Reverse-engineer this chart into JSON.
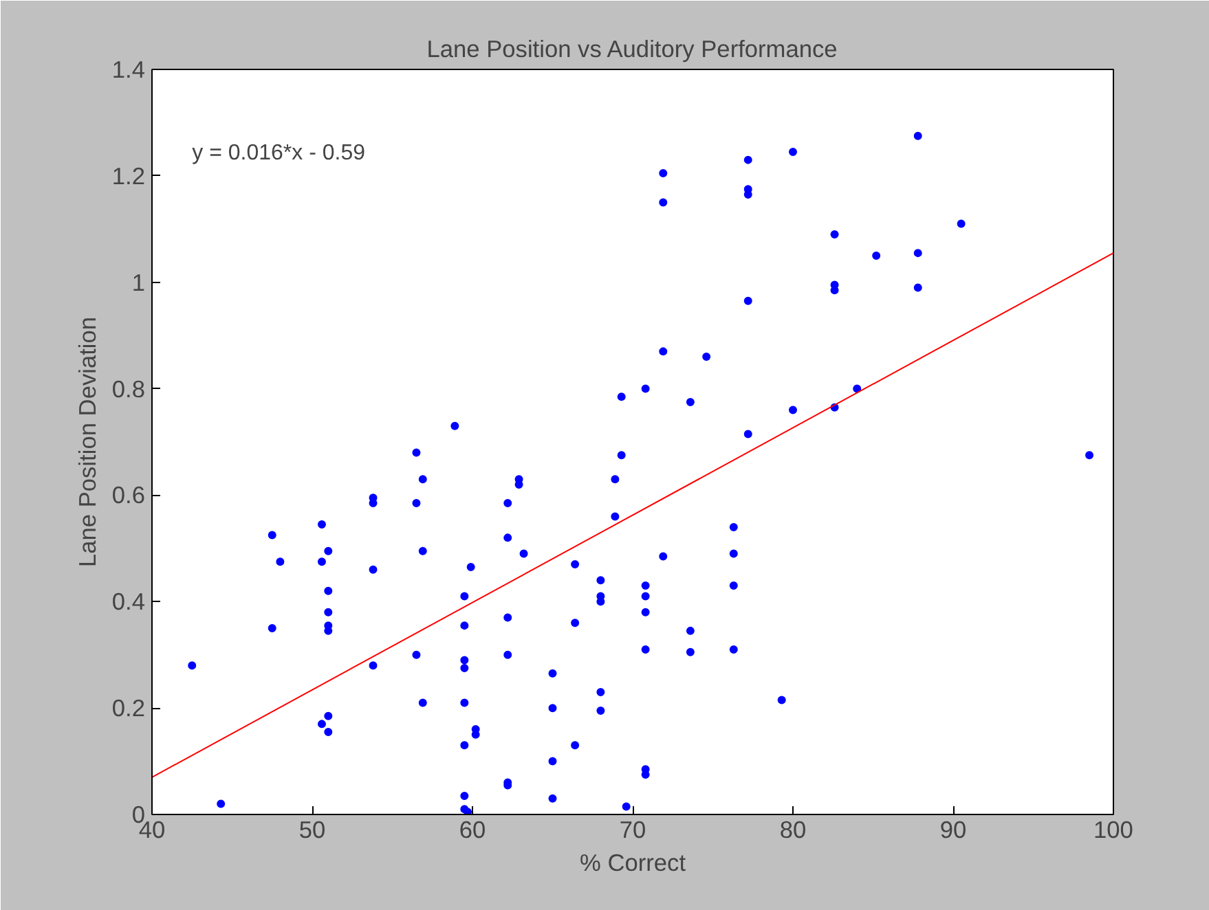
{
  "chart_data": {
    "type": "scatter",
    "title": "Lane Position vs Auditory Performance",
    "xlabel": "% Correct",
    "ylabel": "Lane Position Deviation",
    "xlim": [
      40,
      100
    ],
    "xticks": [
      40,
      50,
      60,
      70,
      80,
      90,
      100
    ],
    "ylim": [
      0,
      1.4
    ],
    "yticks": [
      0,
      0.2,
      0.4,
      0.6,
      0.8,
      1,
      1.2,
      1.4
    ],
    "grid": false,
    "annotations": [
      "y = 0.016*x - 0.59"
    ],
    "series": [
      {
        "marker": "circle",
        "color": "#0000ff",
        "x": [
          42.5,
          44.3,
          47.5,
          47.5,
          48,
          50.6,
          50.6,
          50.6,
          51,
          51,
          51,
          51,
          51,
          51,
          51,
          53.8,
          53.8,
          53.8,
          53.8,
          56.5,
          56.5,
          56.5,
          56.9,
          56.9,
          56.9,
          58.9,
          59.5,
          59.5,
          59.5,
          59.5,
          59.5,
          59.5,
          59.5,
          59.5,
          59.7,
          59.9,
          60.2,
          60.2,
          62.2,
          62.2,
          62.2,
          62.2,
          62.2,
          62.2,
          62.9,
          62.9,
          63.2,
          65,
          65,
          65,
          65,
          66.4,
          66.4,
          66.4,
          68,
          68,
          68,
          68,
          68,
          68.9,
          68.9,
          69.3,
          69.3,
          69.6,
          70.8,
          70.8,
          70.8,
          70.8,
          70.8,
          70.8,
          70.8,
          71.9,
          71.9,
          71.9,
          71.9,
          73.6,
          73.6,
          73.6,
          74.6,
          76.3,
          76.3,
          76.3,
          76.3,
          77.2,
          77.2,
          77.2,
          77.2,
          77.2,
          79.3,
          80,
          80,
          82.6,
          82.6,
          82.6,
          82.6,
          84,
          85.2,
          87.8,
          87.8,
          87.8,
          90.5,
          98.5
        ],
        "values": [
          0.28,
          0.02,
          0.525,
          0.35,
          0.475,
          0.545,
          0.475,
          0.17,
          0.495,
          0.42,
          0.38,
          0.355,
          0.345,
          0.185,
          0.155,
          0.595,
          0.585,
          0.46,
          0.28,
          0.68,
          0.585,
          0.3,
          0.63,
          0.495,
          0.21,
          0.73,
          0.41,
          0.355,
          0.29,
          0.275,
          0.21,
          0.13,
          0.035,
          0.01,
          0.005,
          0.465,
          0.16,
          0.15,
          0.585,
          0.52,
          0.37,
          0.3,
          0.06,
          0.055,
          0.63,
          0.62,
          0.49,
          0.265,
          0.2,
          0.1,
          0.03,
          0.47,
          0.36,
          0.13,
          0.44,
          0.41,
          0.4,
          0.23,
          0.195,
          0.63,
          0.56,
          0.785,
          0.675,
          0.015,
          0.8,
          0.43,
          0.41,
          0.38,
          0.31,
          0.085,
          0.075,
          1.205,
          1.15,
          0.87,
          0.485,
          0.775,
          0.345,
          0.305,
          0.86,
          0.54,
          0.49,
          0.43,
          0.31,
          1.23,
          1.175,
          1.165,
          0.965,
          0.715,
          0.215,
          1.245,
          0.76,
          1.09,
          0.995,
          0.985,
          0.765,
          0.8,
          1.05,
          1.275,
          1.055,
          0.99,
          1.11,
          0.675
        ]
      },
      {
        "type": "line",
        "color": "#ff0000",
        "x": [
          40,
          100
        ],
        "values": [
          0.07,
          1.055
        ]
      }
    ]
  }
}
